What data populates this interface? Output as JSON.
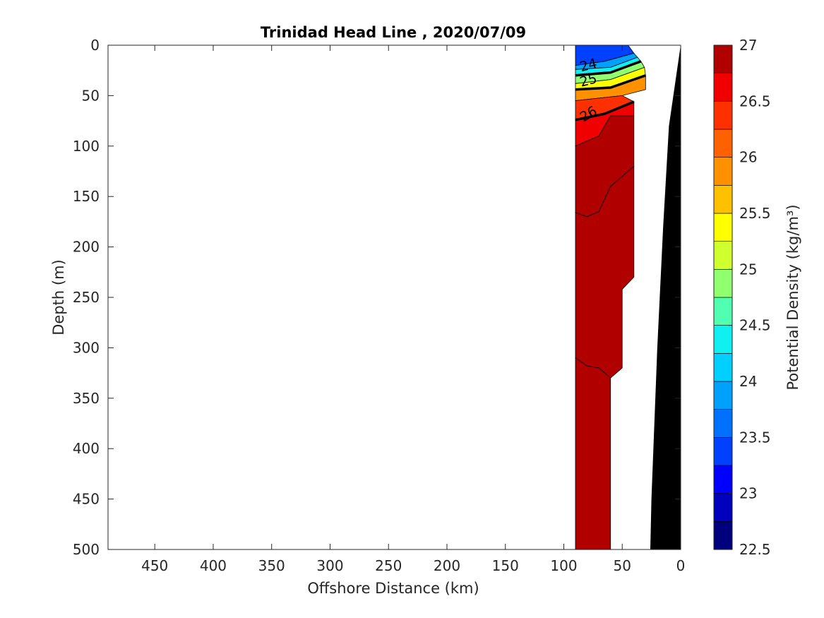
{
  "chart_data": {
    "type": "contour",
    "title": "Trinidad Head Line , 2020/07/09",
    "xlabel": "Offshore Distance (km)",
    "ylabel": "Depth (m)",
    "xlim": [
      490,
      0
    ],
    "ylim": [
      0,
      500
    ],
    "x_reversed": true,
    "y_reversed": true,
    "x_ticks": [
      450,
      400,
      350,
      300,
      250,
      200,
      150,
      100,
      50,
      0
    ],
    "y_ticks": [
      0,
      50,
      100,
      150,
      200,
      250,
      300,
      350,
      400,
      450,
      500
    ],
    "colorbar": {
      "label": "Potential Density (kg/m³)",
      "range": [
        22.5,
        27
      ],
      "step": 0.25,
      "ticks": [
        27,
        26.5,
        26,
        25.5,
        25,
        24.5,
        24,
        23.5,
        23,
        22.5
      ],
      "colors": [
        "#00007f",
        "#0000bf",
        "#0000ff",
        "#0040ff",
        "#0070ff",
        "#00a0ff",
        "#00d0ff",
        "#10f0f0",
        "#50ffb0",
        "#90ff70",
        "#d0ff30",
        "#ffff00",
        "#ffc000",
        "#ff9000",
        "#ff6000",
        "#ff3000",
        "#f00000",
        "#b00000"
      ]
    },
    "contour_labels": [
      "24",
      "25",
      "26"
    ],
    "regions": [
      {
        "density": 23.25,
        "points": [
          [
            90,
            0
          ],
          [
            45,
            0
          ],
          [
            40,
            8
          ],
          [
            65,
            16
          ],
          [
            90,
            20
          ]
        ]
      },
      {
        "density": 23.75,
        "points": [
          [
            90,
            20
          ],
          [
            65,
            16
          ],
          [
            40,
            8
          ],
          [
            37,
            12
          ],
          [
            60,
            22
          ],
          [
            90,
            24
          ]
        ]
      },
      {
        "density": 24.25,
        "points": [
          [
            90,
            24
          ],
          [
            60,
            22
          ],
          [
            37,
            12
          ],
          [
            34,
            16
          ],
          [
            60,
            27
          ],
          [
            90,
            30
          ]
        ]
      },
      {
        "density": 24.75,
        "points": [
          [
            90,
            30
          ],
          [
            60,
            27
          ],
          [
            34,
            16
          ],
          [
            31,
            22
          ],
          [
            60,
            34
          ],
          [
            90,
            38
          ]
        ]
      },
      {
        "density": 25.25,
        "points": [
          [
            90,
            38
          ],
          [
            60,
            34
          ],
          [
            31,
            22
          ],
          [
            30,
            30
          ],
          [
            60,
            42
          ],
          [
            90,
            44
          ]
        ]
      },
      {
        "density": 25.75,
        "points": [
          [
            90,
            44
          ],
          [
            60,
            42
          ],
          [
            30,
            30
          ],
          [
            30,
            44
          ],
          [
            50,
            50
          ],
          [
            90,
            55
          ]
        ]
      },
      {
        "density": 26.25,
        "points": [
          [
            90,
            55
          ],
          [
            50,
            50
          ],
          [
            40,
            56
          ],
          [
            65,
            68
          ],
          [
            90,
            74
          ]
        ]
      },
      {
        "density": 26.5,
        "points": [
          [
            90,
            74
          ],
          [
            65,
            68
          ],
          [
            40,
            56
          ],
          [
            40,
            70
          ],
          [
            60,
            70
          ],
          [
            70,
            90
          ],
          [
            90,
            100
          ]
        ]
      },
      {
        "density": 26.75,
        "points": [
          [
            90,
            100
          ],
          [
            70,
            90
          ],
          [
            60,
            70
          ],
          [
            40,
            70
          ],
          [
            40,
            120
          ],
          [
            60,
            140
          ],
          [
            70,
            165
          ],
          [
            80,
            170
          ],
          [
            90,
            166
          ]
        ]
      },
      {
        "density": 26.85,
        "points": [
          [
            90,
            166
          ],
          [
            80,
            170
          ],
          [
            70,
            165
          ],
          [
            60,
            140
          ],
          [
            40,
            120
          ],
          [
            40,
            230
          ],
          [
            50,
            242
          ],
          [
            50,
            320
          ],
          [
            60,
            330
          ],
          [
            70,
            320
          ],
          [
            80,
            318
          ],
          [
            90,
            310
          ]
        ]
      },
      {
        "density": 27.0,
        "points": [
          [
            90,
            310
          ],
          [
            80,
            318
          ],
          [
            70,
            320
          ],
          [
            60,
            330
          ],
          [
            60,
            500
          ],
          [
            90,
            500
          ]
        ]
      }
    ],
    "bathymetry": [
      [
        0,
        0
      ],
      [
        10,
        80
      ],
      [
        15,
        180
      ],
      [
        20,
        300
      ],
      [
        25,
        450
      ],
      [
        26,
        500
      ],
      [
        0,
        500
      ]
    ]
  }
}
